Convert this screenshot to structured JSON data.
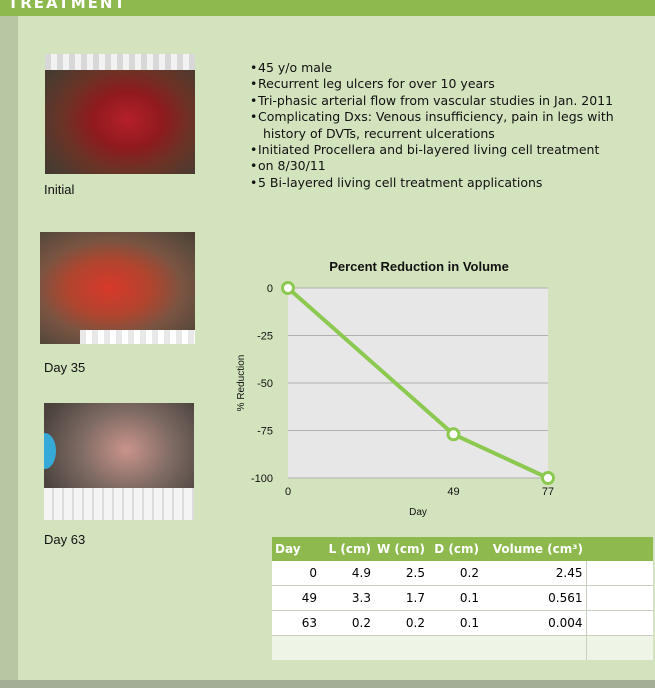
{
  "header": {
    "title": "TREATMENT"
  },
  "photos": [
    {
      "caption": "Initial"
    },
    {
      "caption": "Day 35"
    },
    {
      "caption": "Day 63"
    }
  ],
  "bullets": {
    "b1": "45 y/o male",
    "b2": "Recurrent leg ulcers for over 10 years",
    "b3": "Tri-phasic arterial flow from vascular studies in Jan. 2011",
    "b4a": "Complicating Dxs: Venous insufficiency, pain in legs with",
    "b4b": "history of DVTs, recurrent ulcerations",
    "b5": "Initiated Procellera and bi-layered living cell treatment",
    "b6": "on 8/30/11",
    "b7": "5 Bi-layered living cell treatment applications"
  },
  "chart_data": {
    "type": "line",
    "title": "Percent Reduction in Volume",
    "xlabel": "Day",
    "ylabel": "% Reduction",
    "x": [
      0,
      49,
      77
    ],
    "y": [
      0,
      -77,
      -100
    ],
    "xticks": [
      "0",
      "49",
      "77"
    ],
    "yticks": [
      "0",
      "-25",
      "-50",
      "-75",
      "-100"
    ],
    "ylim": [
      -100,
      0
    ],
    "grid": true,
    "colors": {
      "line": "#8cc950",
      "plot_bg": "#e7e7e7",
      "gridline": "#b0b0b0"
    }
  },
  "table": {
    "headers": [
      "Day",
      "L (cm)",
      "W (cm)",
      "D (cm)",
      "Volume (cm³)"
    ],
    "rows": [
      [
        "0",
        "4.9",
        "2.5",
        "0.2",
        "2.45"
      ],
      [
        "49",
        "3.3",
        "1.7",
        "0.1",
        "0.561"
      ],
      [
        "63",
        "0.2",
        "0.2",
        "0.1",
        "0.004"
      ]
    ]
  }
}
